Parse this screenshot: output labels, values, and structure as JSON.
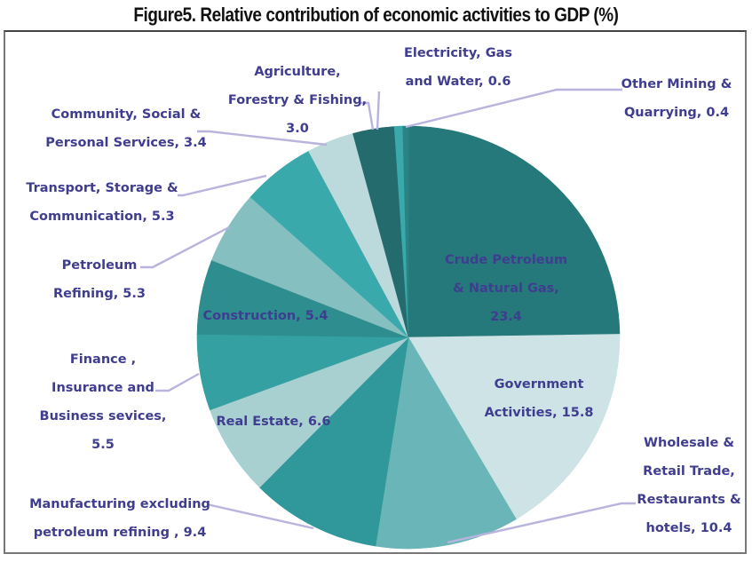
{
  "title": "Figure5. Relative contribution of economic activities to GDP (%)",
  "chart_data": {
    "type": "pie",
    "title": "Figure5. Relative contribution of economic activities to GDP (%)",
    "start_angle": "12 o'clock",
    "direction": "clockwise",
    "slices": [
      {
        "name": "Crude Petroleum & Natural Gas",
        "value": 23.4,
        "color": "#26797b",
        "label_lines": [
          "Crude Petroleum",
          "& Natural Gas,",
          "23.4"
        ],
        "label_position": "inside"
      },
      {
        "name": "Government Activities",
        "value": 15.8,
        "color": "#cde3e5",
        "label_lines": [
          "Government",
          "Activities, 15.8"
        ],
        "label_position": "inside"
      },
      {
        "name": "Wholesale & Retail Trade, Restaurants & hotels",
        "value": 10.4,
        "color": "#6ab5b7",
        "label_lines": [
          "Wholesale &",
          "Retail Trade,",
          "Restaurants &",
          "hotels, 10.4"
        ],
        "label_position": "outside"
      },
      {
        "name": "Manufacturing excluding petroleum refining",
        "value": 9.4,
        "color": "#30989a",
        "label_lines": [
          "Manufacturing excluding",
          "petroleum refining , 9.4"
        ],
        "label_position": "outside"
      },
      {
        "name": "Real Estate",
        "value": 6.6,
        "color": "#a9d0d1",
        "label_lines": [
          "Real Estate, 6.6"
        ],
        "label_position": "inside"
      },
      {
        "name": "Finance , Insurance and Business sevices",
        "value": 5.5,
        "color": "#35a0a2",
        "label_lines": [
          "Finance ,",
          "Insurance and",
          "Business sevices,",
          "5.5"
        ],
        "label_position": "outside"
      },
      {
        "name": "Construction",
        "value": 5.4,
        "color": "#2e8e8f",
        "label_lines": [
          "Construction, 5.4"
        ],
        "label_position": "inside"
      },
      {
        "name": "Petroleum Refining",
        "value": 5.3,
        "color": "#86bfc0",
        "label_lines": [
          "Petroleum",
          "Refining, 5.3"
        ],
        "label_position": "outside"
      },
      {
        "name": "Transport, Storage & Communication",
        "value": 5.3,
        "color": "#3aa9ab",
        "label_lines": [
          "Transport, Storage &",
          "Communication, 5.3"
        ],
        "label_position": "outside"
      },
      {
        "name": "Community, Social & Personal Services",
        "value": 3.4,
        "color": "#bcdadb",
        "label_lines": [
          "Community, Social &",
          "Personal Services, 3.4"
        ],
        "label_position": "outside"
      },
      {
        "name": "Agriculture, Forestry & Fishing",
        "value": 3.0,
        "color": "#246b6d",
        "label_lines": [
          "Agriculture,",
          "Forestry & Fishing,",
          "3.0"
        ],
        "label_position": "outside"
      },
      {
        "name": "Electricity, Gas and Water",
        "value": 0.6,
        "color": "#3aa9ab",
        "label_lines": [
          "Electricity, Gas",
          "and Water, 0.6"
        ],
        "label_position": "outside"
      },
      {
        "name": "Other Mining & Quarrying",
        "value": 0.4,
        "color": "#2a8385",
        "label_lines": [
          "Other Mining &",
          "Quarrying, 0.4"
        ],
        "label_position": "outside"
      }
    ],
    "label_color": "#3f3d8f",
    "leader_line_color": "#b8b4de"
  }
}
